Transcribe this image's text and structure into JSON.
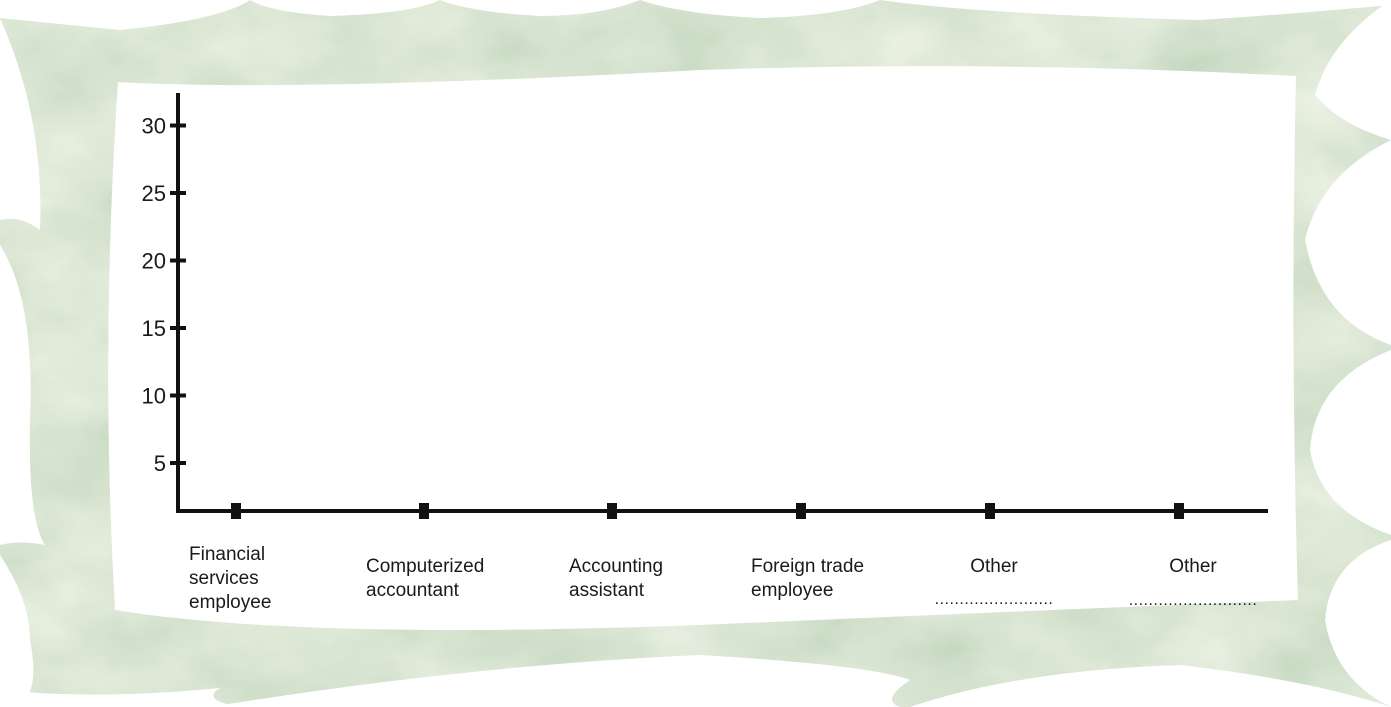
{
  "colors": {
    "frame_light": "#dbe7d8",
    "frame_mid": "#b9cfb5",
    "frame_dark": "#7ea97b",
    "panel": "#ffffff",
    "ink": "#111111"
  },
  "chart_data": {
    "type": "bar",
    "title": "",
    "xlabel": "",
    "ylabel": "",
    "ylim": [
      0,
      32
    ],
    "yticks": [
      5,
      10,
      15,
      20,
      25,
      30
    ],
    "categories": [
      "Financial services employee",
      "Computerized accountant",
      "Accounting assistant",
      "Foreign trade employee",
      "Other ........................",
      "Other .........................."
    ],
    "category_label_lines": [
      [
        "Financial",
        "services",
        "employee"
      ],
      [
        "Computerized",
        "accountant"
      ],
      [
        "Accounting",
        "assistant"
      ],
      [
        "Foreign trade",
        "employee"
      ],
      [
        "Other",
        "........................"
      ],
      [
        "Other",
        ".........................."
      ]
    ],
    "values": [
      null,
      null,
      null,
      null,
      null,
      null
    ],
    "grid": false,
    "legend": "none"
  }
}
